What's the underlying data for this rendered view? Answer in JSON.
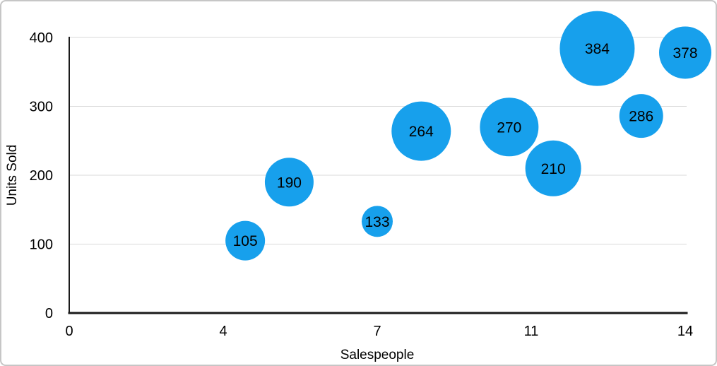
{
  "chart_data": {
    "type": "scatter",
    "variant": "bubble",
    "title": "",
    "xlabel": "Salespeople",
    "ylabel": "Units Sold",
    "xlim": [
      0,
      14
    ],
    "ylim": [
      0,
      400
    ],
    "x_tick_labels": [
      "0",
      "4",
      "7",
      "11",
      "14"
    ],
    "y_tick_labels": [
      "0",
      "100",
      "200",
      "300",
      "400"
    ],
    "grid": "horizontal-only",
    "legend_position": "none",
    "colors": {
      "bubble_fill": "#17A0EC",
      "gridline": "#DADADA",
      "axis": "#1A1A1A",
      "text": "#000000",
      "frame_border": "#C6C6C6",
      "background": "#FFFFFF"
    },
    "series": [
      {
        "name": "Units Sold",
        "points": [
          {
            "x": 4,
            "y": 105,
            "label": "105",
            "bubble_radius_px": 28
          },
          {
            "x": 5,
            "y": 190,
            "label": "190",
            "bubble_radius_px": 34.5
          },
          {
            "x": 7,
            "y": 133,
            "label": "133",
            "bubble_radius_px": 22
          },
          {
            "x": 8,
            "y": 264,
            "label": "264",
            "bubble_radius_px": 42
          },
          {
            "x": 10,
            "y": 270,
            "label": "270",
            "bubble_radius_px": 41.5
          },
          {
            "x": 11,
            "y": 210,
            "label": "210",
            "bubble_radius_px": 39.5
          },
          {
            "x": 12,
            "y": 384,
            "label": "384",
            "bubble_radius_px": 53
          },
          {
            "x": 13,
            "y": 286,
            "label": "286",
            "bubble_radius_px": 31
          },
          {
            "x": 14,
            "y": 378,
            "label": "378",
            "bubble_radius_px": 37
          }
        ]
      }
    ]
  }
}
